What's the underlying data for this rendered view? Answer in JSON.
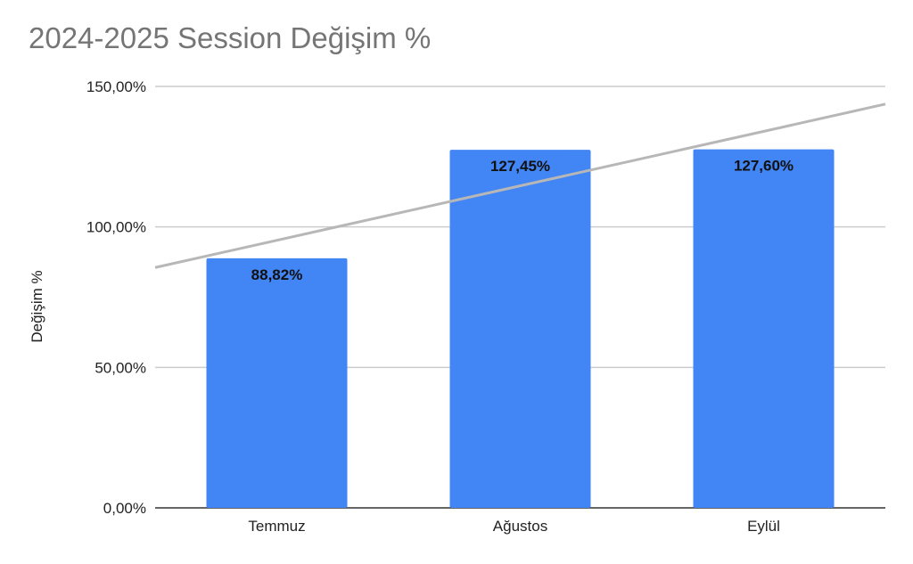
{
  "chart_data": {
    "type": "bar",
    "title": "2024-2025 Session Değişim %",
    "xlabel": "",
    "ylabel": "Değişim %",
    "categories": [
      "Temmuz",
      "Ağustos",
      "Eylül"
    ],
    "values": [
      88.82,
      127.45,
      127.6
    ],
    "data_labels": [
      "88,82%",
      "127,45%",
      "127,60%"
    ],
    "ylim": [
      0,
      150
    ],
    "yticks": [
      0,
      50,
      100,
      150
    ],
    "ytick_labels": [
      "0,00%",
      "50,00%",
      "100,00%",
      "150,00%"
    ],
    "grid": true,
    "legend": "none",
    "trendline": {
      "type": "linear",
      "color": "#b7b7b7"
    },
    "colors": {
      "bar": "#4285f4",
      "grid": "#cccccc",
      "axis": "#333333",
      "title": "#757575"
    }
  }
}
